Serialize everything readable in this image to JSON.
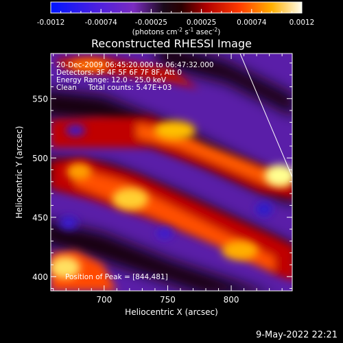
{
  "colorbar": {
    "ticks": [
      "-0.0012",
      "-0.00074",
      "-0.00025",
      "0.00025",
      "0.00074",
      "0.0012"
    ],
    "unit_label_main": "(photons cm",
    "unit_label_exp1": "-2",
    "unit_label_mid": " s",
    "unit_label_exp2": "-1",
    "unit_label_tail": " asec",
    "unit_label_exp3": "-2",
    "unit_label_end": ")"
  },
  "chart_data": {
    "type": "heatmap",
    "title": "Reconstructed RHESSI Image",
    "xlabel": "Heliocentric X (arcsec)",
    "ylabel": "Heliocentric Y (arcsec)",
    "xlim": [
      658,
      848
    ],
    "ylim": [
      388,
      588
    ],
    "xticks": [
      700,
      750,
      800
    ],
    "yticks": [
      400,
      450,
      500,
      550
    ],
    "color_range": [
      -0.0012,
      0.0012
    ],
    "annotations": {
      "line1": "20-Dec-2009 06:45:20.000 to 06:47:32.000",
      "line2": "Detectors: 3F 4F 5F 6F 7F 8F, Att 0",
      "line3": "Energy Range: 12.0 - 25.0 keV",
      "line4": "Clean     Total counts: 5.47E+03",
      "peak": "Position of Peak = [844,481]"
    },
    "peak": [
      844,
      481
    ]
  },
  "footer": {
    "date": "9-May-2022 22:21"
  }
}
